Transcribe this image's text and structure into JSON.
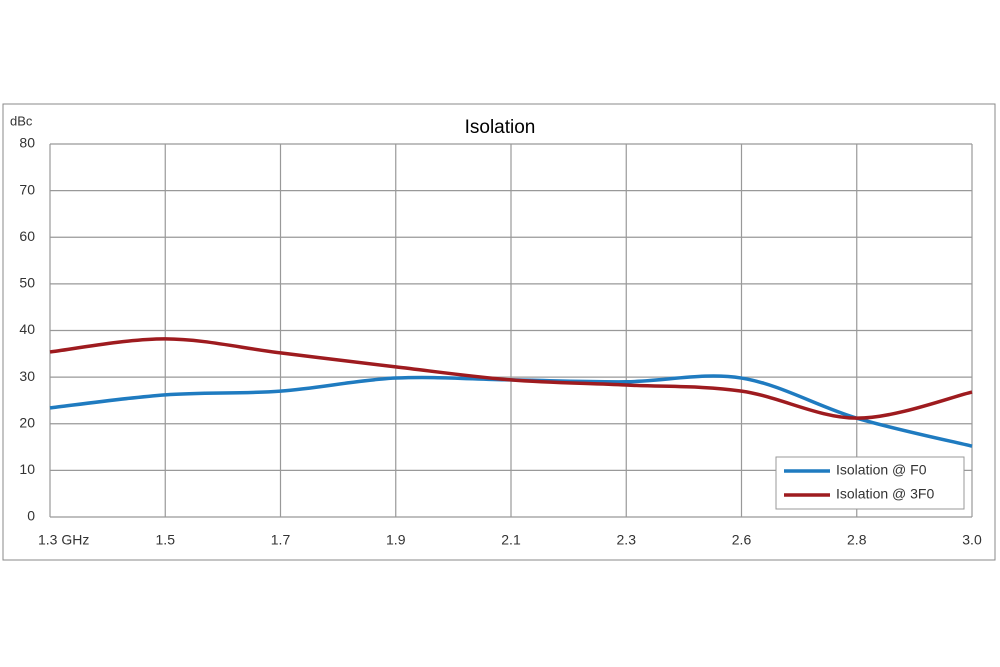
{
  "chart_data": {
    "type": "line",
    "title": "Isolation",
    "y_label": "dBc",
    "categories": [
      "1.3  GHz",
      "1.5",
      "1.7",
      "1.9",
      "2.1",
      "2.3",
      "2.6",
      "2.8",
      "3.0"
    ],
    "series": [
      {
        "name": "Isolation @ F0",
        "color": "#1f7bc0",
        "values": [
          23.4,
          26.2,
          27.0,
          29.8,
          29.4,
          29.0,
          29.8,
          21.2,
          15.2
        ]
      },
      {
        "name": "Isolation @ 3F0",
        "color": "#9e1b1f",
        "values": [
          35.4,
          38.2,
          35.2,
          32.2,
          29.4,
          28.3,
          27.0,
          21.2,
          26.8
        ]
      }
    ],
    "ylim": [
      0,
      80
    ],
    "yticks": [
      0,
      10,
      20,
      30,
      40,
      50,
      60,
      70,
      80
    ],
    "grid": true,
    "legend": "lower right"
  }
}
